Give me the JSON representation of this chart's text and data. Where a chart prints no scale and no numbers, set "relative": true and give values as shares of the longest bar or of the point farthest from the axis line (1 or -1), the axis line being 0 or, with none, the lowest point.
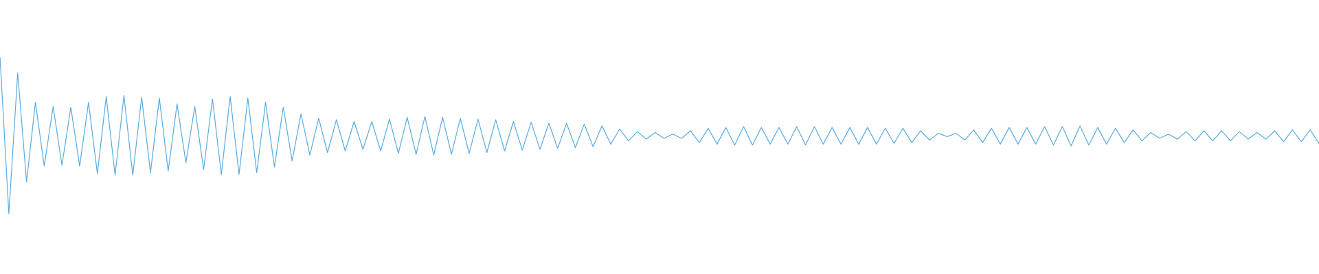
{
  "chart_data": {
    "type": "line",
    "relative": true,
    "color": "#5dade2",
    "marker": "none",
    "line_style": "solid",
    "categories": [
      null,
      null,
      null,
      null,
      null,
      null,
      null,
      null,
      null,
      null,
      null,
      null,
      null,
      null,
      null,
      null,
      null,
      null,
      null,
      null,
      null,
      null,
      null,
      null,
      null,
      null,
      null,
      null,
      null,
      null,
      null,
      null,
      null,
      null,
      null,
      null,
      null,
      null,
      null,
      null,
      null,
      null,
      null,
      null,
      null,
      null,
      null,
      null,
      null,
      null,
      null,
      null,
      null,
      null,
      null,
      null,
      null,
      null,
      null,
      null,
      null,
      null,
      null,
      null,
      null,
      null,
      null,
      null,
      null,
      null,
      null,
      null,
      null,
      null,
      null,
      null,
      null,
      null,
      null,
      null,
      null,
      null,
      null,
      null,
      null,
      null,
      null,
      null,
      null,
      null,
      null,
      null,
      null,
      null,
      null,
      null,
      null,
      null,
      null,
      null,
      null,
      null,
      null,
      null,
      null,
      null,
      null,
      null,
      null,
      null,
      null,
      null,
      null,
      null,
      null,
      null,
      null,
      null,
      null,
      null,
      null,
      null,
      null,
      null,
      null,
      null,
      null,
      null,
      null,
      null,
      null,
      null,
      null,
      null,
      null,
      null,
      null,
      null,
      null,
      null,
      null,
      null,
      null,
      null,
      null,
      null,
      null,
      null,
      null,
      null
    ],
    "values": [
      1.0,
      0.0,
      0.898,
      0.203,
      0.711,
      0.304,
      0.684,
      0.31,
      0.679,
      0.304,
      0.711,
      0.256,
      0.748,
      0.246,
      0.754,
      0.246,
      0.743,
      0.262,
      0.738,
      0.272,
      0.7,
      0.326,
      0.684,
      0.283,
      0.732,
      0.251,
      0.748,
      0.251,
      0.738,
      0.262,
      0.711,
      0.299,
      0.679,
      0.337,
      0.636,
      0.374,
      0.609,
      0.39,
      0.599,
      0.401,
      0.588,
      0.411,
      0.588,
      0.401,
      0.604,
      0.385,
      0.615,
      0.379,
      0.62,
      0.374,
      0.615,
      0.379,
      0.609,
      0.385,
      0.604,
      0.39,
      0.599,
      0.401,
      0.588,
      0.406,
      0.583,
      0.411,
      0.577,
      0.417,
      0.577,
      0.422,
      0.572,
      0.427,
      0.561,
      0.444,
      0.54,
      0.465,
      0.524,
      0.476,
      0.518,
      0.481,
      0.508,
      0.481,
      0.529,
      0.454,
      0.545,
      0.444,
      0.55,
      0.438,
      0.556,
      0.438,
      0.55,
      0.444,
      0.55,
      0.444,
      0.556,
      0.438,
      0.556,
      0.444,
      0.55,
      0.444,
      0.55,
      0.444,
      0.55,
      0.444,
      0.545,
      0.449,
      0.545,
      0.454,
      0.529,
      0.47,
      0.513,
      0.492,
      0.513,
      0.47,
      0.535,
      0.454,
      0.545,
      0.444,
      0.55,
      0.444,
      0.55,
      0.444,
      0.556,
      0.438,
      0.556,
      0.433,
      0.561,
      0.438,
      0.55,
      0.444,
      0.545,
      0.454,
      0.535,
      0.465,
      0.518,
      0.481,
      0.508,
      0.476,
      0.524,
      0.465,
      0.529,
      0.465,
      0.529,
      0.465,
      0.524,
      0.476,
      0.518,
      0.476,
      0.529,
      0.46,
      0.535,
      0.46,
      0.535,
      0.449
    ]
  }
}
